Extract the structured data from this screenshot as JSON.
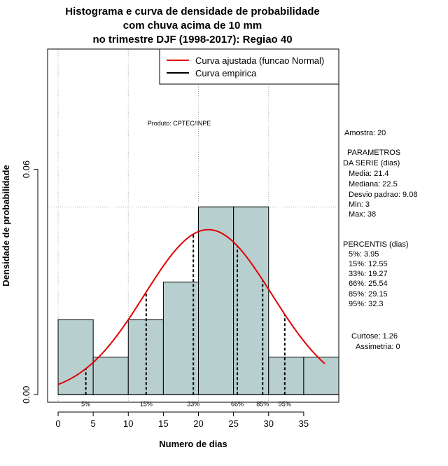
{
  "chart_data": {
    "type": "histogram",
    "title_lines": [
      "Histograma e curva de densidade de probabilidade",
      "com chuva acima de 10 mm",
      "no trimestre DJF (1998-2017): Regiao 40"
    ],
    "xlabel": "Numero de dias",
    "ylabel": "Densidade de probabilidade",
    "x_ticks": [
      0,
      5,
      10,
      15,
      20,
      25,
      30,
      35
    ],
    "y_ticks": [
      "0.00",
      "0.06"
    ],
    "xlim": [
      -1.5,
      40
    ],
    "ylim": [
      -0.002,
      0.092
    ],
    "bins": [
      {
        "x0": 0,
        "x1": 5,
        "density": 0.02
      },
      {
        "x0": 5,
        "x1": 10,
        "density": 0.01
      },
      {
        "x0": 10,
        "x1": 15,
        "density": 0.02
      },
      {
        "x0": 15,
        "x1": 20,
        "density": 0.03
      },
      {
        "x0": 20,
        "x1": 25,
        "density": 0.05
      },
      {
        "x0": 25,
        "x1": 30,
        "density": 0.05
      },
      {
        "x0": 30,
        "x1": 35,
        "density": 0.01
      },
      {
        "x0": 35,
        "x1": 40,
        "density": 0.01
      }
    ],
    "normal_curve": {
      "mean": 21.4,
      "sd": 9.08,
      "x_from": 0,
      "x_to": 38
    },
    "reference_line_y": 0.05,
    "grid_x": [
      0,
      10,
      20,
      30
    ],
    "percentile_markers": [
      {
        "label": "5%",
        "x": 3.95
      },
      {
        "label": "15%",
        "x": 12.55
      },
      {
        "label": "33%",
        "x": 19.27
      },
      {
        "label": "66%",
        "x": 25.54
      },
      {
        "label": "85%",
        "x": 29.15
      },
      {
        "label": "95%",
        "x": 32.3
      }
    ],
    "legend": {
      "position": "top-right",
      "entries": [
        {
          "label": "Curva ajustada (funcao Normal)",
          "color": "#e00000"
        },
        {
          "label": "Curva empirica",
          "color": "#000000"
        }
      ]
    },
    "annotation": "Produto: CPTEC/INPE",
    "bar_color": "#b8cfd0",
    "curve_color": "#e00000"
  },
  "side_panel": {
    "amostra": "Amostra: 20",
    "parametros_title_1": "PARAMETROS",
    "parametros_title_2": "DA SERIE (dias)",
    "parametros": [
      "Media: 21.4",
      "Mediana: 22.5",
      "Desvio padrao: 9.08",
      "Min: 3",
      "Max: 38"
    ],
    "percentis_title": "PERCENTIS (dias)",
    "percentis": [
      "5%: 3.95",
      "15%: 12.55",
      "33%: 19.27",
      "66%: 25.54",
      "85%: 29.15",
      "95%: 32.3"
    ],
    "curtose": "Curtose: 1.26",
    "assimetria": "Assimetria: 0"
  }
}
